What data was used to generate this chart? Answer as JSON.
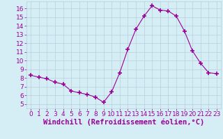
{
  "x": [
    0,
    1,
    2,
    3,
    4,
    5,
    6,
    7,
    8,
    9,
    10,
    11,
    12,
    13,
    14,
    15,
    16,
    17,
    18,
    19,
    20,
    21,
    22,
    23
  ],
  "y": [
    8.3,
    8.1,
    7.9,
    7.5,
    7.3,
    6.5,
    6.3,
    6.1,
    5.8,
    5.2,
    6.4,
    8.6,
    11.3,
    13.6,
    15.1,
    16.3,
    15.8,
    15.7,
    15.1,
    13.4,
    11.1,
    9.7,
    8.6,
    8.5
  ],
  "xlabel": "Windchill (Refroidissement éolien,°C)",
  "ylim": [
    4.5,
    16.8
  ],
  "xlim": [
    -0.5,
    23.5
  ],
  "yticks": [
    5,
    6,
    7,
    8,
    9,
    10,
    11,
    12,
    13,
    14,
    15,
    16
  ],
  "xticks": [
    0,
    1,
    2,
    3,
    4,
    5,
    6,
    7,
    8,
    9,
    10,
    11,
    12,
    13,
    14,
    15,
    16,
    17,
    18,
    19,
    20,
    21,
    22,
    23
  ],
  "line_color": "#990099",
  "marker": "+",
  "marker_size": 4,
  "bg_color": "#d5edf5",
  "grid_color": "#b8d0da",
  "tick_color": "#990099",
  "label_color": "#990099",
  "font_size": 6.5,
  "xlabel_fontsize": 7.5
}
